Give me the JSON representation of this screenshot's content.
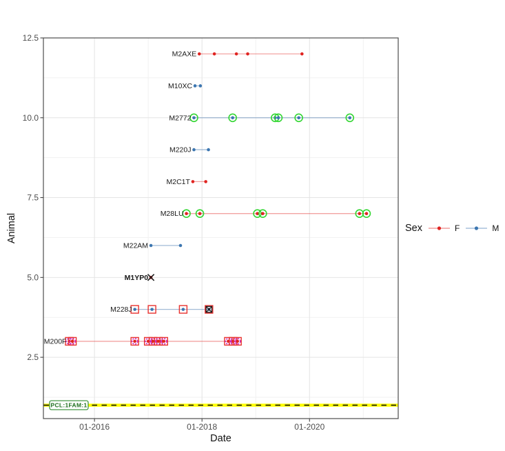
{
  "chart_data": {
    "type": "scatter",
    "title": "",
    "xlabel": "Date",
    "ylabel": "Animal",
    "x_unit": "decimal_year",
    "xlim": [
      2015.05,
      2021.65
    ],
    "ylim": [
      0.58,
      12.5
    ],
    "grid": true,
    "legend_position": "right",
    "x_ticks": [
      {
        "label": "01-2016",
        "value": 2016
      },
      {
        "label": "01-2018",
        "value": 2018
      },
      {
        "label": "01-2020",
        "value": 2020
      }
    ],
    "x_minor": [
      2017,
      2019,
      2021
    ],
    "y_ticks": [
      {
        "label": "2.5",
        "value": 2.5
      },
      {
        "label": "5.0",
        "value": 5.0
      },
      {
        "label": "7.5",
        "value": 7.5
      },
      {
        "label": "10.0",
        "value": 10.0
      },
      {
        "label": "12.5",
        "value": 12.5
      }
    ],
    "y_minor": [
      1.25,
      3.75,
      6.25,
      8.75,
      11.25
    ],
    "reference_line": {
      "y": 1,
      "label": "PCL:1FAM:1",
      "style": "yellow-with-black-dashes"
    },
    "series": [
      {
        "label": "M2AXE",
        "y": 12,
        "sex": "F",
        "bold_label": false,
        "points": [
          {
            "x": 2017.95,
            "marks": []
          },
          {
            "x": 2018.23,
            "marks": []
          },
          {
            "x": 2018.64,
            "marks": []
          },
          {
            "x": 2018.85,
            "marks": []
          },
          {
            "x": 2019.86,
            "marks": []
          }
        ]
      },
      {
        "label": "M10XC",
        "y": 11,
        "sex": "M",
        "bold_label": false,
        "points": [
          {
            "x": 2017.87,
            "marks": []
          },
          {
            "x": 2017.97,
            "marks": []
          }
        ]
      },
      {
        "label": "M2772",
        "y": 10,
        "sex": "M",
        "bold_label": false,
        "points": [
          {
            "x": 2017.85,
            "marks": [
              "green-circle"
            ]
          },
          {
            "x": 2018.57,
            "marks": [
              "green-circle"
            ]
          },
          {
            "x": 2019.36,
            "marks": [
              "green-circle"
            ]
          },
          {
            "x": 2019.42,
            "marks": [
              "green-circle"
            ]
          },
          {
            "x": 2019.8,
            "marks": [
              "green-circle"
            ]
          },
          {
            "x": 2020.75,
            "marks": [
              "green-circle"
            ]
          }
        ]
      },
      {
        "label": "M220J",
        "y": 9,
        "sex": "M",
        "bold_label": false,
        "points": [
          {
            "x": 2017.85,
            "marks": []
          },
          {
            "x": 2018.12,
            "marks": []
          }
        ]
      },
      {
        "label": "M2C1T",
        "y": 8,
        "sex": "F",
        "bold_label": false,
        "points": [
          {
            "x": 2017.83,
            "marks": []
          },
          {
            "x": 2018.07,
            "marks": []
          }
        ]
      },
      {
        "label": "M28LU",
        "y": 7,
        "sex": "F",
        "bold_label": false,
        "points": [
          {
            "x": 2017.71,
            "marks": [
              "green-circle"
            ]
          },
          {
            "x": 2017.96,
            "marks": [
              "green-circle"
            ]
          },
          {
            "x": 2019.03,
            "marks": [
              "green-circle"
            ]
          },
          {
            "x": 2019.13,
            "marks": [
              "green-circle"
            ]
          },
          {
            "x": 2020.93,
            "marks": [
              "green-circle"
            ]
          },
          {
            "x": 2021.06,
            "marks": [
              "green-circle"
            ]
          }
        ]
      },
      {
        "label": "M22AM",
        "y": 6,
        "sex": "M",
        "bold_label": false,
        "points": [
          {
            "x": 2017.05,
            "marks": []
          },
          {
            "x": 2017.6,
            "marks": []
          }
        ]
      },
      {
        "label": "M1YP0",
        "y": 5,
        "sex": "F",
        "bold_label": true,
        "points": [
          {
            "x": 2017.05,
            "marks": [
              "black-x"
            ]
          }
        ]
      },
      {
        "label": "M228J",
        "y": 4,
        "sex": "M",
        "bold_label": false,
        "points": [
          {
            "x": 2016.75,
            "marks": [
              "red-square"
            ]
          },
          {
            "x": 2017.07,
            "marks": [
              "red-square"
            ]
          },
          {
            "x": 2017.65,
            "marks": [
              "red-square"
            ]
          },
          {
            "x": 2018.13,
            "marks": [
              "red-square",
              "box-x"
            ]
          }
        ]
      },
      {
        "label": "M200F",
        "y": 3,
        "sex": "F",
        "bold_label": false,
        "points": [
          {
            "x": 2015.53,
            "marks": [
              "red-square",
              "magenta-circle"
            ]
          },
          {
            "x": 2015.59,
            "marks": [
              "red-square",
              "magenta-circle"
            ]
          },
          {
            "x": 2016.75,
            "marks": [
              "red-square",
              "magenta-circle"
            ]
          },
          {
            "x": 2017.0,
            "marks": [
              "red-square",
              "magenta-circle"
            ]
          },
          {
            "x": 2017.09,
            "marks": [
              "red-square",
              "magenta-circle"
            ]
          },
          {
            "x": 2017.19,
            "marks": [
              "red-square",
              "magenta-circle"
            ]
          },
          {
            "x": 2017.29,
            "marks": [
              "red-square",
              "magenta-circle"
            ]
          },
          {
            "x": 2018.49,
            "marks": [
              "red-square",
              "magenta-circle"
            ]
          },
          {
            "x": 2018.58,
            "marks": [
              "red-square",
              "magenta-circle"
            ]
          },
          {
            "x": 2018.66,
            "marks": [
              "red-square",
              "magenta-circle"
            ]
          }
        ]
      }
    ]
  },
  "legend": {
    "title": "Sex",
    "entries": [
      {
        "label": "F",
        "color": "#E02421"
      },
      {
        "label": "M",
        "color": "#3C76B0"
      }
    ]
  },
  "colors": {
    "female": "#E02421",
    "male": "#3C76B0",
    "female_line": "rgba(224,36,33,0.42)",
    "male_line": "rgba(70,120,175,0.5)",
    "green_ring": "#33D633",
    "magenta_ring": "#C722C7",
    "overlay_square": "#E8312E",
    "cross_black": "#1A1A1A",
    "refline_yellow": "#FFFF00",
    "refline_dash": "#111111",
    "ref_label_border": "#2E8B2E",
    "ref_label_text": "#1D6F1D",
    "grid_major": "#E4E4E4",
    "grid_minor": "#F1F1F1",
    "panel_border": "#4D4D4D",
    "tick_text": "#4D4D4D",
    "label_text": "#1A1A1A"
  }
}
